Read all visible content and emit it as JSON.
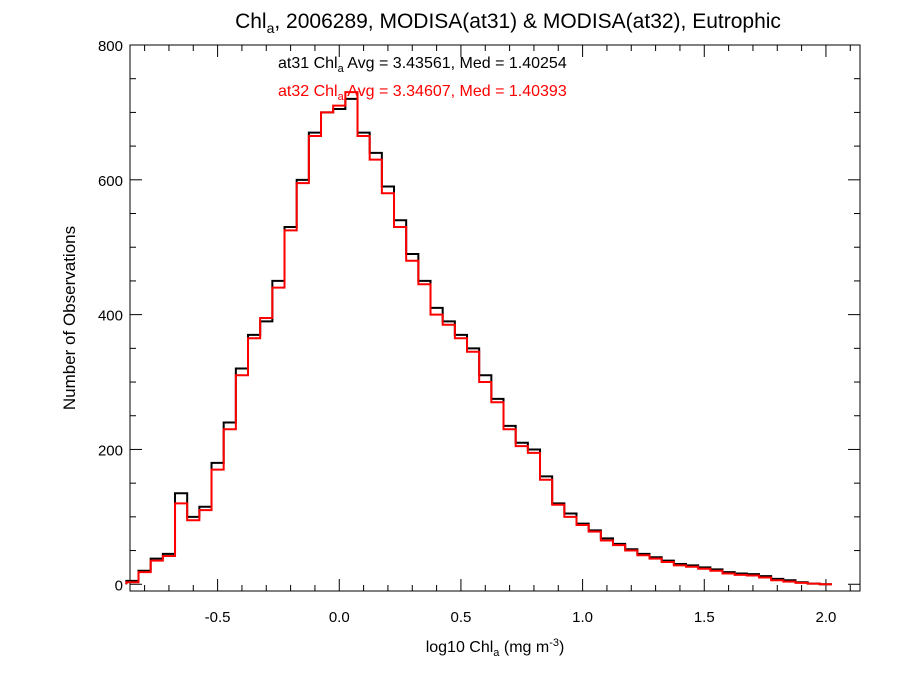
{
  "chart_data": {
    "type": "line",
    "title_parts": {
      "pre": "Chl",
      "sub": "a",
      "post": ", 2006289, MODISA(at31) & MODISA(at32), Eutrophic"
    },
    "xlabel_parts": {
      "pre": "log10 Chl",
      "sub": "a",
      "mid": " (mg m",
      "sup": "-3",
      "post": ")"
    },
    "ylabel": "Number of Observations",
    "xlim": [
      -0.86,
      2.14
    ],
    "ylim": [
      -10,
      800
    ],
    "x_ticks": [
      -0.5,
      0.0,
      0.5,
      1.0,
      1.5,
      2.0
    ],
    "x_tick_labels": [
      "-0.5",
      "0.0",
      "0.5",
      "1.0",
      "1.5",
      "2.0"
    ],
    "y_ticks": [
      0,
      200,
      400,
      600,
      800
    ],
    "y_tick_labels": [
      "0",
      "200",
      "400",
      "600",
      "800"
    ],
    "grid": false,
    "annotations": [
      {
        "id": "at31",
        "color": "#000000",
        "pre": "at31 Chl",
        "sub": "a",
        "post": " Avg = 3.43561, Med = 1.40254"
      },
      {
        "id": "at32",
        "color": "#ff0000",
        "pre": "at32 Chl",
        "sub": "a",
        "post": " Avg = 3.34607, Med = 1.40393"
      }
    ],
    "series": [
      {
        "id": "at31",
        "color": "#000000",
        "x": [
          -0.85,
          -0.8,
          -0.75,
          -0.7,
          -0.65,
          -0.6,
          -0.55,
          -0.5,
          -0.45,
          -0.4,
          -0.35,
          -0.3,
          -0.25,
          -0.2,
          -0.15,
          -0.1,
          -0.05,
          0.0,
          0.05,
          0.1,
          0.15,
          0.2,
          0.25,
          0.3,
          0.35,
          0.4,
          0.45,
          0.5,
          0.55,
          0.6,
          0.65,
          0.7,
          0.75,
          0.8,
          0.85,
          0.9,
          0.95,
          1.0,
          1.05,
          1.1,
          1.15,
          1.2,
          1.25,
          1.3,
          1.35,
          1.4,
          1.45,
          1.5,
          1.55,
          1.6,
          1.65,
          1.7,
          1.75,
          1.8,
          1.85,
          1.9,
          1.95,
          2.0
        ],
        "y": [
          5,
          20,
          38,
          45,
          135,
          100,
          115,
          180,
          240,
          320,
          370,
          390,
          450,
          530,
          600,
          670,
          700,
          705,
          720,
          670,
          640,
          590,
          540,
          490,
          450,
          410,
          390,
          370,
          350,
          310,
          275,
          235,
          210,
          200,
          160,
          120,
          105,
          90,
          80,
          68,
          60,
          52,
          45,
          40,
          35,
          30,
          28,
          25,
          22,
          18,
          16,
          15,
          12,
          8,
          6,
          3,
          1,
          0
        ]
      },
      {
        "id": "at32",
        "color": "#ff0000",
        "x": [
          -0.85,
          -0.8,
          -0.75,
          -0.7,
          -0.65,
          -0.6,
          -0.55,
          -0.5,
          -0.45,
          -0.4,
          -0.35,
          -0.3,
          -0.25,
          -0.2,
          -0.15,
          -0.1,
          -0.05,
          0.0,
          0.05,
          0.1,
          0.15,
          0.2,
          0.25,
          0.3,
          0.35,
          0.4,
          0.45,
          0.5,
          0.55,
          0.6,
          0.65,
          0.7,
          0.75,
          0.8,
          0.85,
          0.9,
          0.95,
          1.0,
          1.05,
          1.1,
          1.15,
          1.2,
          1.25,
          1.3,
          1.35,
          1.4,
          1.45,
          1.5,
          1.55,
          1.6,
          1.65,
          1.7,
          1.75,
          1.8,
          1.85,
          1.9,
          1.95,
          2.0
        ],
        "y": [
          3,
          18,
          35,
          42,
          120,
          95,
          110,
          170,
          230,
          310,
          365,
          395,
          440,
          525,
          595,
          665,
          700,
          710,
          730,
          665,
          630,
          580,
          530,
          480,
          445,
          400,
          385,
          365,
          345,
          300,
          270,
          230,
          205,
          195,
          155,
          118,
          100,
          88,
          78,
          65,
          58,
          50,
          43,
          38,
          33,
          28,
          26,
          23,
          20,
          16,
          14,
          13,
          10,
          6,
          4,
          2,
          1,
          0
        ]
      }
    ]
  }
}
